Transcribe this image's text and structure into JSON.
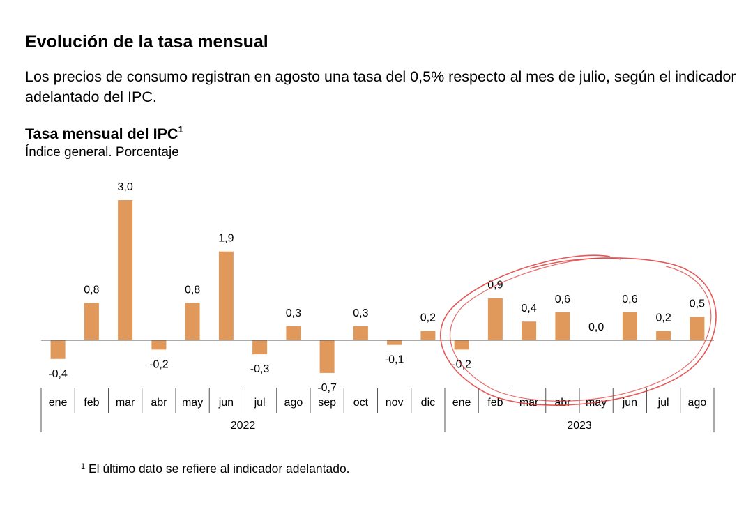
{
  "header": {
    "title": "Evolución de la tasa mensual",
    "intro": "Los precios de consumo registran en agosto una tasa del 0,5% respecto al mes de julio, según el indicador adelantado del IPC."
  },
  "chart_heading": {
    "title": "Tasa mensual del IPC",
    "title_sup": "1",
    "subtitle": "Índice general. Porcentaje"
  },
  "footnote": {
    "marker": "1",
    "text": "El último dato se refiere al indicador adelantado."
  },
  "chart_data": {
    "type": "bar",
    "title": "Tasa mensual del IPC",
    "subtitle": "Índice general. Porcentaje",
    "categories": [
      "ene",
      "feb",
      "mar",
      "abr",
      "may",
      "jun",
      "jul",
      "ago",
      "sep",
      "oct",
      "nov",
      "dic",
      "ene",
      "feb",
      "mar",
      "abr",
      "may",
      "jun",
      "jul",
      "ago"
    ],
    "groups": [
      {
        "label": "2022",
        "count": 12
      },
      {
        "label": "2023",
        "count": 8
      }
    ],
    "values": [
      -0.4,
      0.8,
      3.0,
      -0.2,
      0.8,
      1.9,
      -0.3,
      0.3,
      -0.7,
      0.3,
      -0.1,
      0.2,
      -0.2,
      0.9,
      0.4,
      0.6,
      0.0,
      0.6,
      0.2,
      0.5
    ],
    "value_labels": [
      "-0,4",
      "0,8",
      "3,0",
      "-0,2",
      "0,8",
      "1,9",
      "-0,3",
      "0,3",
      "-0,7",
      "0,3",
      "-0,1",
      "0,2",
      "-0,2",
      "0,9",
      "0,4",
      "0,6",
      "0,0",
      "0,6",
      "0,2",
      "0,5"
    ],
    "bar_color": "#E0995A",
    "annotation": {
      "type": "hand-drawn ellipse",
      "color": "#E03A3A",
      "covers": "2023"
    },
    "grid": false
  }
}
